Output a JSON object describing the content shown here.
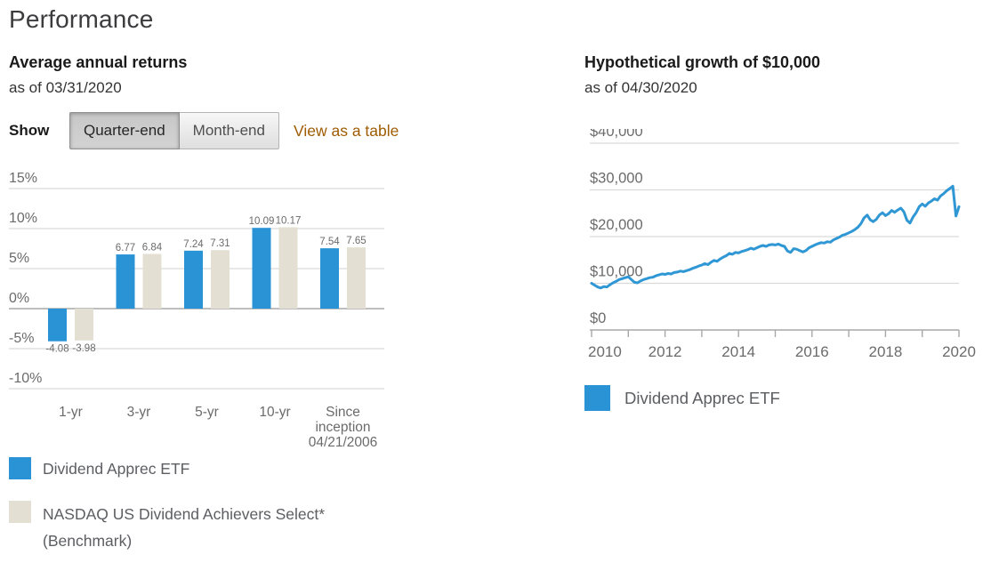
{
  "page": {
    "title": "Performance"
  },
  "left_panel": {
    "title": "Average annual returns",
    "as_of": "as of 03/31/2020",
    "show_label": "Show",
    "toggle": {
      "options": [
        "Quarter-end",
        "Month-end"
      ],
      "selected": "Quarter-end"
    },
    "view_table_link": "View as a table",
    "legend": [
      {
        "label": "Dividend Apprec ETF",
        "color": "#2a93d5"
      },
      {
        "label": "NASDAQ US Dividend Achievers Select*",
        "label_line2": "(Benchmark)",
        "color": "#e3e0d3"
      }
    ]
  },
  "right_panel": {
    "title": "Hypothetical growth of $10,000",
    "as_of": "as of 04/30/2020",
    "legend": [
      {
        "label": "Dividend Apprec ETF",
        "color": "#2a93d5"
      }
    ]
  },
  "colors": {
    "accent_blue": "#2a93d5",
    "benchmark_beige": "#e3e0d3",
    "grid_light": "#d9d9d9",
    "axis_dark": "#a8a8a8",
    "axis_text": "#6b6b6b",
    "link_brown": "#9e5b00"
  },
  "chart_data": [
    {
      "type": "bar",
      "title": "Average annual returns",
      "as_of": "03/31/2020",
      "categories": [
        "1-yr",
        "3-yr",
        "5-yr",
        "10-yr",
        "Since inception 04/21/2006"
      ],
      "category_display_lines": [
        [
          "1-yr"
        ],
        [
          "3-yr"
        ],
        [
          "5-yr"
        ],
        [
          "10-yr"
        ],
        [
          "Since",
          "inception",
          "04/21/2006"
        ]
      ],
      "series": [
        {
          "name": "Dividend Apprec ETF",
          "color": "#2a93d5",
          "values": [
            -4.08,
            6.77,
            7.24,
            10.09,
            7.54
          ]
        },
        {
          "name": "NASDAQ US Dividend Achievers Select* (Benchmark)",
          "color": "#e3e0d3",
          "values": [
            -3.98,
            6.84,
            7.31,
            10.17,
            7.65
          ]
        }
      ],
      "value_labels_shown": true,
      "ylabel": "",
      "ytick_labels": [
        "15%",
        "10%",
        "5%",
        "0%",
        "-5%",
        "-10%"
      ],
      "yticks": [
        15,
        10,
        5,
        0,
        -5,
        -10
      ],
      "ylim": [
        -10,
        15
      ],
      "grid": true,
      "legend_position": "bottom"
    },
    {
      "type": "line",
      "title": "Hypothetical growth of $10,000",
      "as_of": "04/30/2020",
      "x_range_years": [
        2010.33,
        2020.33
      ],
      "x_interval": "monthly",
      "xticks": [
        2010,
        2011,
        2012,
        2013,
        2014,
        2015,
        2016,
        2017,
        2018,
        2019,
        2020
      ],
      "xtick_labels_shown": [
        "2010",
        "2012",
        "2014",
        "2016",
        "2018",
        "2020"
      ],
      "ytick_labels": [
        "$40,000",
        "$30,000",
        "$20,000",
        "$10,000",
        "$0"
      ],
      "yticks": [
        40000,
        30000,
        20000,
        10000,
        0
      ],
      "ylim": [
        0,
        43000
      ],
      "grid": true,
      "legend_position": "bottom",
      "series": [
        {
          "name": "Dividend Apprec ETF",
          "color": "#3097d5",
          "values_usd": [
            10000,
            9600,
            9200,
            9000,
            9300,
            9200,
            9700,
            10100,
            10400,
            10800,
            11000,
            11200,
            11400,
            10800,
            10200,
            10100,
            10500,
            10800,
            11000,
            11200,
            11300,
            11600,
            11800,
            12000,
            11900,
            12100,
            12000,
            12300,
            12400,
            12600,
            12500,
            12700,
            12900,
            13200,
            13400,
            13700,
            13900,
            14200,
            14000,
            14500,
            14900,
            14700,
            15200,
            15600,
            15900,
            16400,
            16200,
            16600,
            16500,
            16800,
            17000,
            17200,
            17500,
            17300,
            17600,
            17900,
            18100,
            17900,
            18200,
            18300,
            18200,
            18400,
            18100,
            17900,
            16900,
            16600,
            17400,
            17300,
            17000,
            16700,
            17000,
            17600,
            17900,
            18200,
            18500,
            18700,
            18600,
            18900,
            18800,
            19300,
            19600,
            19900,
            20300,
            20500,
            20800,
            21100,
            21500,
            22000,
            22800,
            24000,
            24600,
            23600,
            23200,
            23700,
            24600,
            25100,
            24500,
            24900,
            25600,
            25200,
            25700,
            26100,
            25300,
            23500,
            22900,
            24200,
            25100,
            26400,
            27000,
            26500,
            27200,
            27600,
            28100,
            27800,
            28700,
            29200,
            29800,
            30300,
            30800,
            24400,
            26400
          ]
        }
      ]
    }
  ]
}
